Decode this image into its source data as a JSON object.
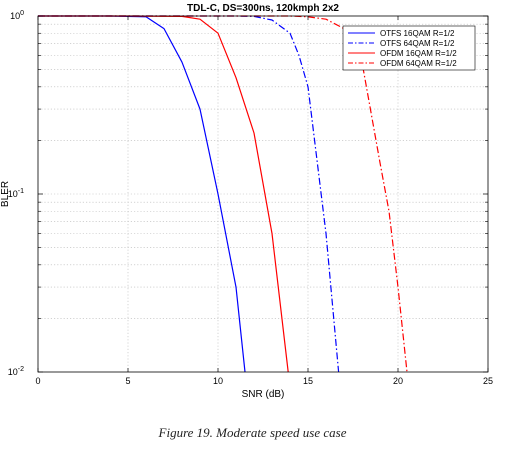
{
  "caption": "Figure 19. Moderate speed use case",
  "chart_data": {
    "type": "line",
    "title": "TDL-C, DS=300ns, 120kmph 2x2",
    "xlabel": "SNR (dB)",
    "ylabel": "BLER",
    "xlim": [
      0,
      25
    ],
    "ylim": [
      0.01,
      1
    ],
    "yscale": "log",
    "grid": true,
    "legend_position": "top-right",
    "x_ticks": [
      "0",
      "5",
      "10",
      "15",
      "20",
      "25"
    ],
    "y_ticks": [
      {
        "base": "10",
        "exp": "0",
        "value": 1
      },
      {
        "base": "10",
        "exp": "-1",
        "value": 0.1
      },
      {
        "base": "10",
        "exp": "-2",
        "value": 0.01
      }
    ],
    "series": [
      {
        "name": "OTFS 16QAM R=1/2",
        "color": "#0000ff",
        "dash": "solid",
        "x": [
          0,
          2,
          4,
          6,
          7,
          8,
          9,
          10,
          11,
          11.5
        ],
        "y": [
          1,
          1,
          1,
          0.99,
          0.85,
          0.55,
          0.3,
          0.1,
          0.03,
          0.01
        ]
      },
      {
        "name": "OTFS 64QAM R=1/2",
        "color": "#0000ff",
        "dash": "dashdot",
        "x": [
          0,
          5,
          10,
          11,
          12,
          13,
          14,
          14.5,
          15,
          16,
          16.7
        ],
        "y": [
          1,
          1,
          1,
          1,
          0.995,
          0.95,
          0.8,
          0.6,
          0.4,
          0.06,
          0.01
        ]
      },
      {
        "name": "OFDM 16QAM R=1/2",
        "color": "#ff0000",
        "dash": "solid",
        "x": [
          0,
          5,
          8,
          9,
          10,
          11,
          12,
          13,
          13.9
        ],
        "y": [
          1,
          1,
          0.995,
          0.96,
          0.8,
          0.45,
          0.22,
          0.06,
          0.01
        ]
      },
      {
        "name": "OFDM 64QAM R=1/2",
        "color": "#ff0000",
        "dash": "dashdot",
        "x": [
          0,
          10,
          14,
          15,
          16,
          17,
          18,
          19,
          19.5,
          20,
          20.5
        ],
        "y": [
          1,
          1,
          1,
          0.99,
          0.96,
          0.85,
          0.55,
          0.15,
          0.08,
          0.03,
          0.01
        ]
      }
    ]
  }
}
